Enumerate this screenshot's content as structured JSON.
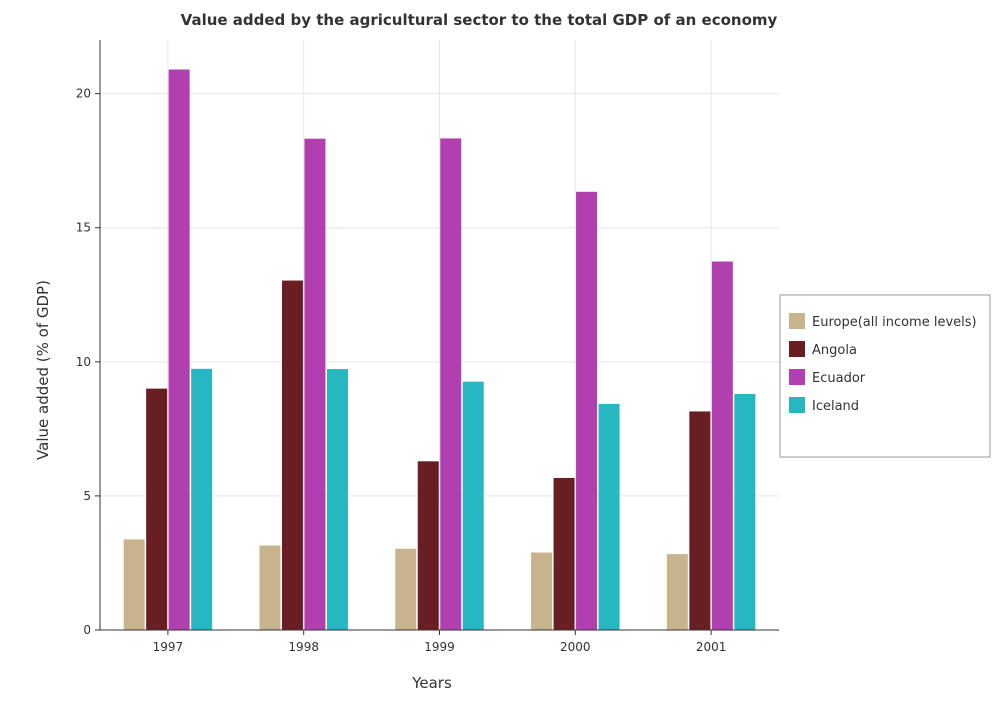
{
  "chart_data": {
    "type": "bar",
    "title": "Value added by the agricultural sector to the total GDP of an economy",
    "xlabel": "Years",
    "ylabel": "Value added (% of GDP)",
    "categories": [
      "1997",
      "1998",
      "1999",
      "2000",
      "2001"
    ],
    "ylim": [
      0,
      22
    ],
    "yticks": [
      "0",
      "5",
      "10",
      "15",
      "20"
    ],
    "grid": true,
    "legend_position": "right",
    "series": [
      {
        "name": "Europe(all income levels)",
        "color": "#c8b48c",
        "values": [
          3.38,
          3.15,
          3.03,
          2.89,
          2.83
        ]
      },
      {
        "name": "Angola",
        "color": "#691e23",
        "values": [
          9.0,
          13.03,
          6.29,
          5.67,
          8.15
        ]
      },
      {
        "name": "Ecuador",
        "color": "#b23fb0",
        "values": [
          20.9,
          18.32,
          18.33,
          16.34,
          13.74
        ]
      },
      {
        "name": "Iceland",
        "color": "#27b7c3",
        "values": [
          9.74,
          9.73,
          9.26,
          8.43,
          8.8
        ]
      }
    ]
  }
}
